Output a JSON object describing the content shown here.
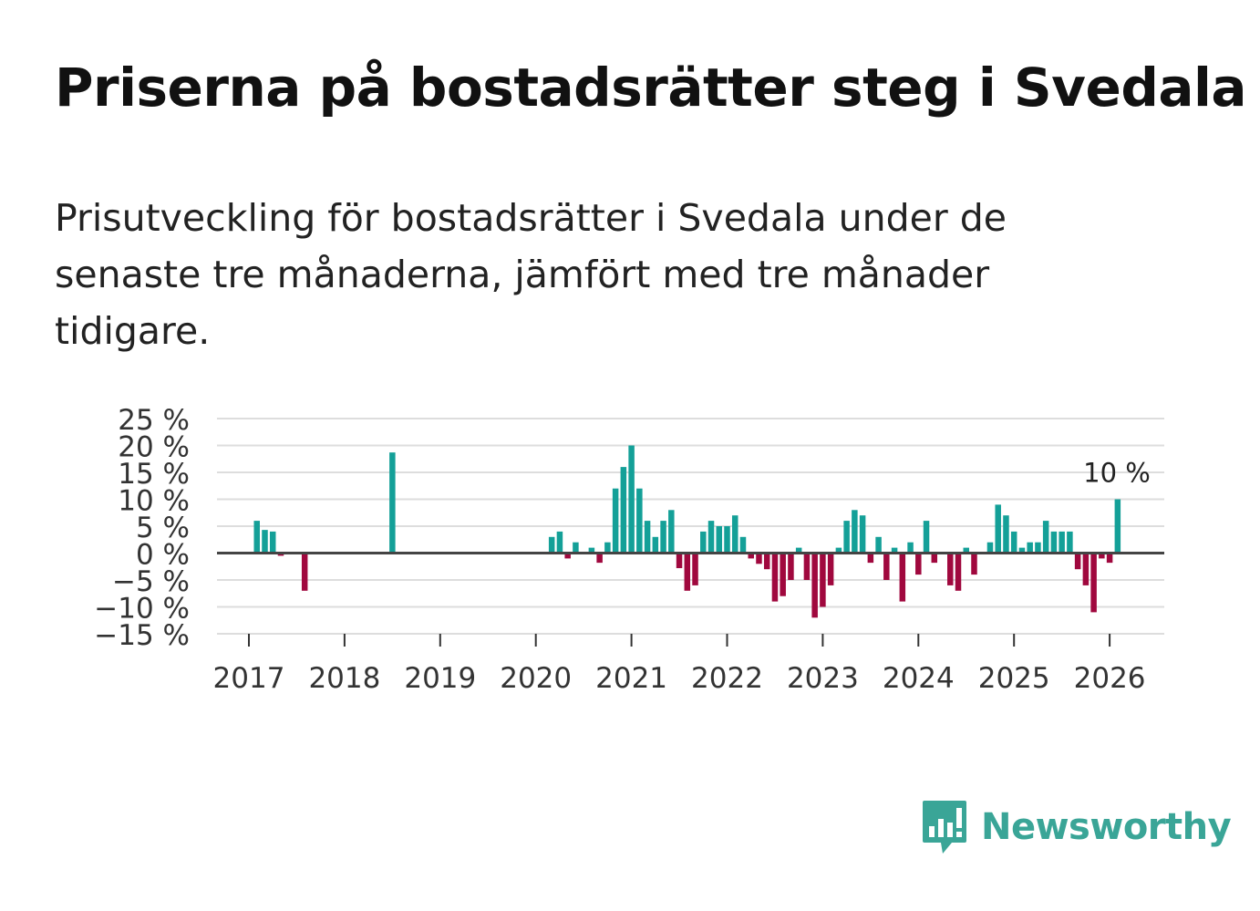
{
  "title": "Priserna på bostadsrätter steg i Svedala",
  "subtitle": "Prisutveckling för bostadsrätter i Svedala under de senaste tre månaderna, jämfört med tre månader tidigare.",
  "brand": {
    "name": "Newsworthy",
    "icon": "newsworthy-chart-logo-icon",
    "color": "#3aa597"
  },
  "colors": {
    "positive": "#14a098",
    "negative": "#a0083e",
    "grid": "#dddddd",
    "zero_line": "#444444",
    "text": "#333333"
  },
  "chart_data": {
    "type": "bar",
    "title": "Priserna på bostadsrätter steg i Svedala",
    "xlabel": "",
    "ylabel": "",
    "unit": "%",
    "ylim": [
      -15,
      25
    ],
    "y_ticks": [
      25,
      20,
      15,
      10,
      5,
      0,
      -5,
      -10,
      -15
    ],
    "y_tick_labels": [
      "25 %",
      "20 %",
      "15 %",
      "10 %",
      "5 %",
      "0 %",
      "−5 %",
      "−10 %",
      "−15 %"
    ],
    "x_ticks": [
      "2017",
      "2018",
      "2019",
      "2020",
      "2021",
      "2022",
      "2023",
      "2024",
      "2025",
      "2026"
    ],
    "start": "2017-01",
    "series": [
      {
        "name": "Prisutveckling",
        "values": [
          0,
          6,
          4.3,
          4,
          -0.5,
          0,
          0,
          -7,
          0,
          0,
          0,
          0,
          0,
          0,
          0,
          0,
          0,
          0,
          18.7,
          0,
          0,
          0,
          0,
          0,
          0,
          0,
          0,
          0,
          0,
          0,
          0,
          0,
          0,
          0,
          0,
          0,
          0,
          0,
          3,
          4,
          -1,
          2,
          0,
          1,
          -1.8,
          2,
          12,
          16,
          20,
          12,
          6,
          3,
          6,
          8,
          -2.8,
          -7,
          -6,
          4,
          6,
          5,
          5,
          7,
          3,
          -1,
          -2,
          -3,
          -9,
          -8,
          -5,
          1,
          -5,
          -12,
          -10,
          -6,
          1,
          6,
          8,
          7,
          -1.8,
          3,
          -5,
          1,
          -9,
          2,
          -4,
          6,
          -1.8,
          0,
          -6,
          -7,
          1,
          -4,
          0,
          2,
          9,
          7,
          4,
          1,
          2,
          2,
          6,
          4,
          4,
          4,
          -3,
          -6,
          -11,
          -1,
          -1.8,
          10
        ]
      }
    ],
    "annotations": [
      {
        "label": "10 %",
        "index": 109,
        "value": 10
      }
    ]
  }
}
